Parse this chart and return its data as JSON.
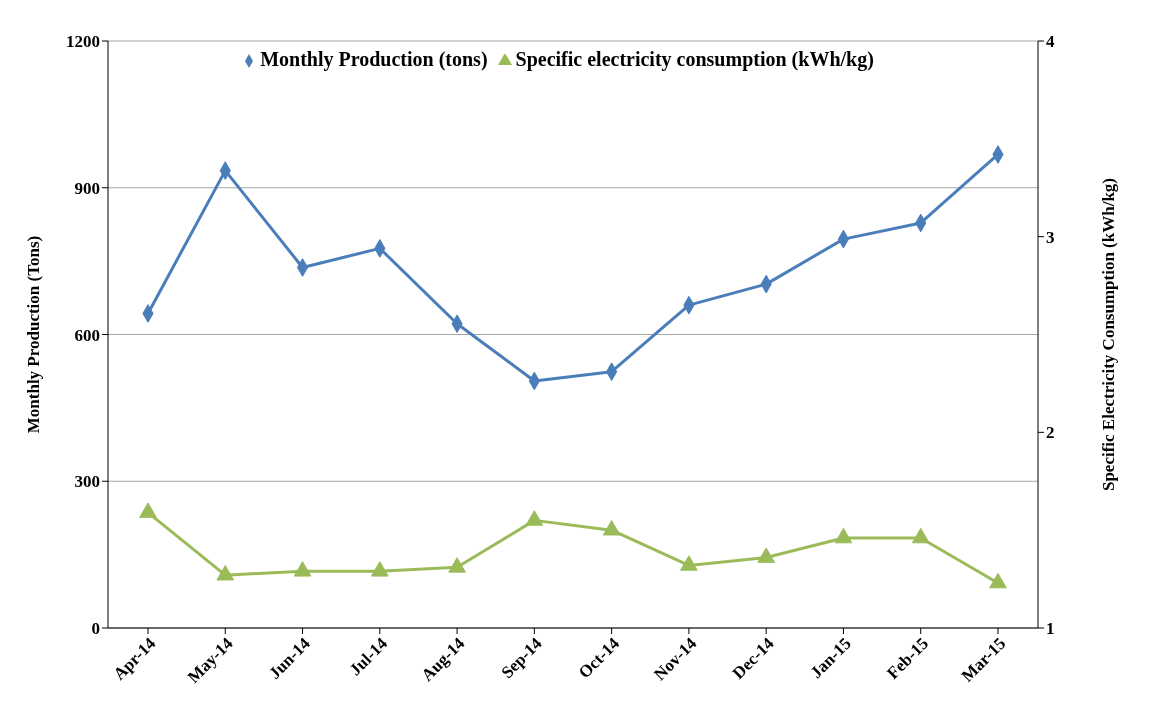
{
  "chart_data": {
    "type": "line",
    "categories": [
      "Apr-14",
      "May-14",
      "Jun-14",
      "Jul-14",
      "Aug-14",
      "Sep-14",
      "Oct-14",
      "Nov-14",
      "Dec-14",
      "Jan-15",
      "Feb-15",
      "Mar-15"
    ],
    "series": [
      {
        "name": "Monthly Production (tons)",
        "color": "#4a7ebb",
        "marker": "diamond",
        "values": [
          643,
          935,
          737,
          776,
          622,
          505,
          524,
          660,
          703,
          795,
          828,
          968
        ]
      },
      {
        "name": "Specific electricity consumption (kWh/kg)",
        "color": "#9bbb59",
        "marker": "triangle",
        "axis": "y2",
        "values": [
          1.59,
          1.27,
          1.29,
          1.29,
          1.31,
          1.55,
          1.5,
          1.32,
          1.36,
          1.46,
          1.46,
          1.23
        ]
      }
    ],
    "ylabel": "Monthly Production (Tons)",
    "y2label": "Specific Electricity Consumption (kWh/kg)",
    "ylim": [
      0,
      1200
    ],
    "yticks": [
      0,
      300,
      600,
      900,
      1200
    ],
    "y2lim": [
      1,
      4
    ],
    "y2ticks": [
      1,
      2,
      3,
      4
    ],
    "grid": "y",
    "legend": "top",
    "line_style": "solid"
  }
}
